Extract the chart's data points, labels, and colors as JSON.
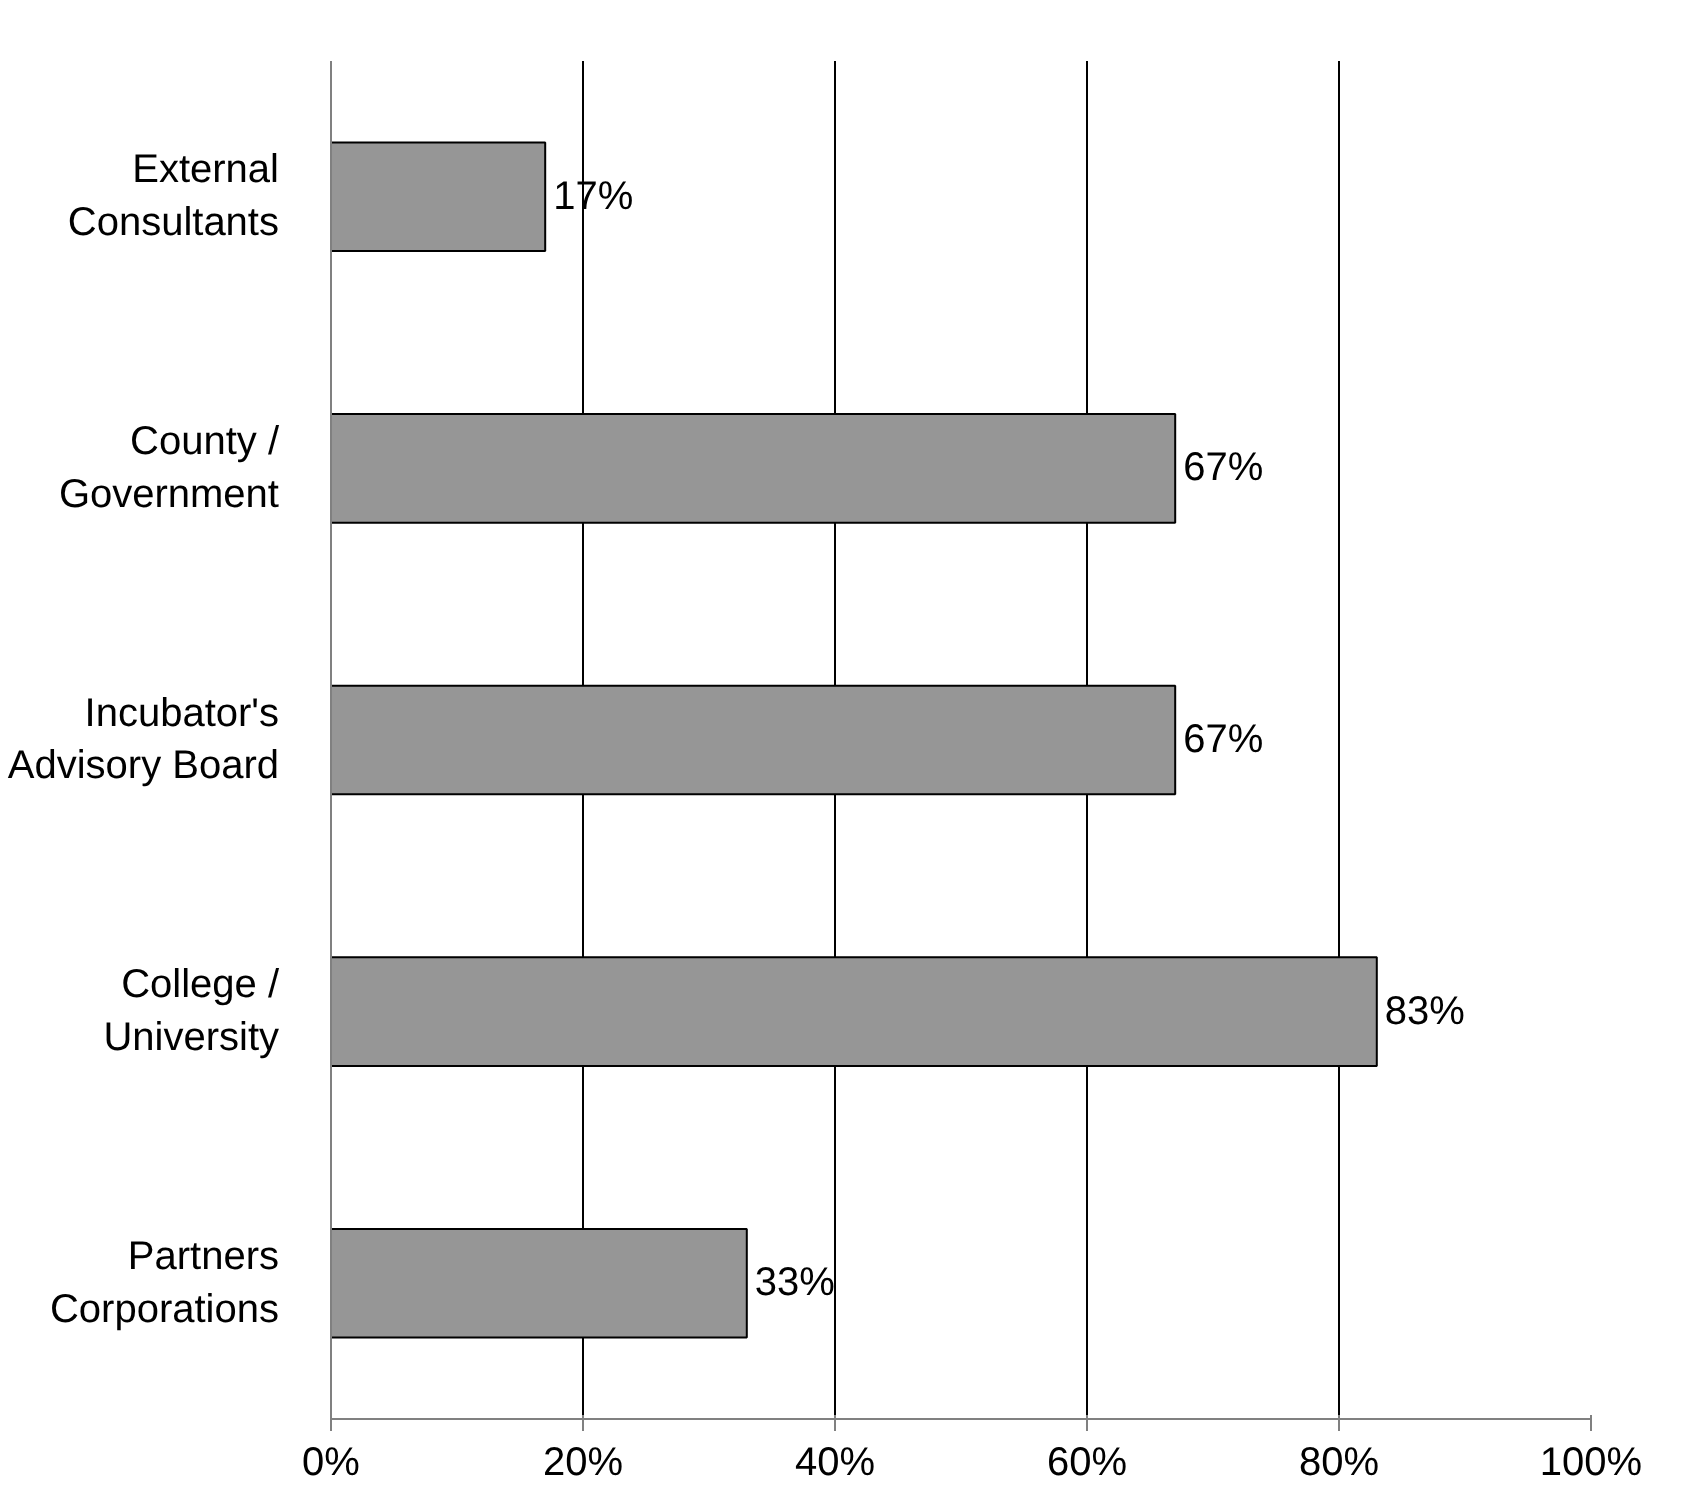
{
  "chart_data": {
    "type": "bar",
    "orientation": "horizontal",
    "categories": [
      "External Consultants",
      "County / Government",
      "Incubator's Advisory Board",
      "College / University",
      "Partners Corporations"
    ],
    "values": [
      17,
      67,
      67,
      83,
      33
    ],
    "value_labels": [
      "17%",
      "67%",
      "67%",
      "83%",
      "33%"
    ],
    "color": "#969696",
    "xlim": [
      0,
      100
    ],
    "xticks": [
      {
        "value": 0,
        "label": "0%"
      },
      {
        "value": 20,
        "label": "20%"
      },
      {
        "value": 40,
        "label": "40%"
      },
      {
        "value": 60,
        "label": "60%"
      },
      {
        "value": 80,
        "label": "80%"
      },
      {
        "value": 100,
        "label": "100%"
      }
    ],
    "grid": "x"
  }
}
